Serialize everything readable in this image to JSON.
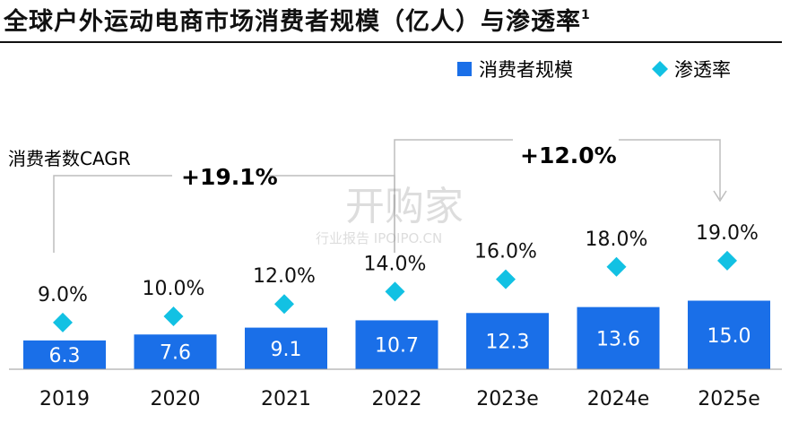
{
  "title": "全球户外运动电商市场消费者规模（亿人）与渗透率",
  "title_sup": "1",
  "colors": {
    "bar": "#1a6fe8",
    "marker": "#12c1e3",
    "arrow": "#bdbdbd",
    "text": "#111111"
  },
  "chart_data": {
    "type": "bar",
    "categories": [
      "2019",
      "2020",
      "2021",
      "2022",
      "2023e",
      "2024e",
      "2025e"
    ],
    "series": [
      {
        "name": "消费者规模",
        "values": [
          6.3,
          7.6,
          9.1,
          10.7,
          12.3,
          13.6,
          15.0
        ],
        "labels": [
          "6.3",
          "7.6",
          "9.1",
          "10.7",
          "12.3",
          "13.6",
          "15.0"
        ]
      },
      {
        "name": "渗透率",
        "values": [
          9.0,
          10.0,
          12.0,
          14.0,
          16.0,
          18.0,
          19.0
        ],
        "labels": [
          "9.0%",
          "10.0%",
          "12.0%",
          "14.0%",
          "16.0%",
          "18.0%",
          "19.0%"
        ]
      }
    ],
    "legend": [
      "消费者规模",
      "渗透率"
    ],
    "legend_position": "top-right",
    "annotations": {
      "cagr_label": "消费者数CAGR",
      "cagr_1": "+19.1%",
      "cagr_2": "+12.0%"
    }
  },
  "watermark": {
    "main": "开购家",
    "sub": "行业报告 IPOIPO.CN"
  }
}
